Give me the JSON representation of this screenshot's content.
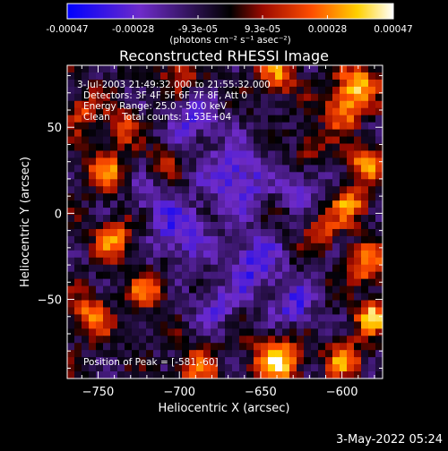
{
  "colorbar": {
    "tick_labels": [
      "-0.00047",
      "-0.00028",
      "-9.3e-05",
      "9.3e-05",
      "0.00028",
      "0.00047"
    ],
    "tick_values": [
      -0.00047,
      -0.00028,
      -9.3e-05,
      9.3e-05,
      0.00028,
      0.00047
    ],
    "unit_label": "(photons cm⁻² s⁻¹ asec⁻²)",
    "range": [
      -0.00047,
      0.00047
    ],
    "colors": [
      "#0000ff",
      "#6e2bc9",
      "#000000",
      "#9b0a00",
      "#ff4e00",
      "#ffd000",
      "#ffffff"
    ]
  },
  "title": "Reconstructed RHESSI Image",
  "info": {
    "time": "3-Jul-2003 21:49:32.000 to 21:55:32.000",
    "detectors": "Detectors: 3F 4F 5F 6F 7F 8F, Att 0",
    "energy": "Energy Range: 25.0 - 50.0 keV",
    "clean": "Clean    Total counts: 1.53E+04",
    "peak": "Position of Peak = [-581,-60]"
  },
  "footer_date": "3-May-2022 05:24",
  "chart_data": {
    "type": "heatmap",
    "title": "Reconstructed RHESSI Image",
    "xlabel": "Heliocentric X (arcsec)",
    "ylabel": "Heliocentric Y (arcsec)",
    "xlim": [
      -769,
      -575
    ],
    "ylim": [
      -96,
      86
    ],
    "x_ticks": [
      -750,
      -700,
      -650,
      -600
    ],
    "y_ticks": [
      -50,
      0,
      50
    ],
    "x_tick_labels": [
      "−750",
      "−700",
      "−650",
      "−600"
    ],
    "y_tick_labels": [
      "−50",
      "0",
      "50"
    ],
    "grid": false,
    "colorbar_position": "top",
    "peak": {
      "x": -581,
      "y": -60
    },
    "value_range": [
      -0.00047,
      0.00047
    ],
    "features": [
      {
        "x": -640,
        "y": -85,
        "v": 1.0,
        "s": 10
      },
      {
        "x": -690,
        "y": -90,
        "v": 0.65,
        "s": 9
      },
      {
        "x": -720,
        "y": -45,
        "v": 0.75,
        "s": 7
      },
      {
        "x": -755,
        "y": -60,
        "v": 0.7,
        "s": 9
      },
      {
        "x": -740,
        "y": -15,
        "v": 0.75,
        "s": 8
      },
      {
        "x": -745,
        "y": 25,
        "v": 0.7,
        "s": 8
      },
      {
        "x": -735,
        "y": 50,
        "v": 0.65,
        "s": 7
      },
      {
        "x": -760,
        "y": 60,
        "v": 0.55,
        "s": 8
      },
      {
        "x": -590,
        "y": 75,
        "v": 0.8,
        "s": 9
      },
      {
        "x": -600,
        "y": 60,
        "v": 0.75,
        "s": 8
      },
      {
        "x": -585,
        "y": 30,
        "v": 0.7,
        "s": 8
      },
      {
        "x": -595,
        "y": 5,
        "v": 0.75,
        "s": 8
      },
      {
        "x": -585,
        "y": -30,
        "v": 0.75,
        "s": 8
      },
      {
        "x": -581,
        "y": -60,
        "v": 1.0,
        "s": 7
      },
      {
        "x": -598,
        "y": -85,
        "v": 0.75,
        "s": 8
      },
      {
        "x": -612,
        "y": -10,
        "v": 0.6,
        "s": 7
      },
      {
        "x": -640,
        "y": 80,
        "v": 0.7,
        "s": 8
      },
      {
        "x": -700,
        "y": 82,
        "v": 0.55,
        "s": 8
      },
      {
        "x": -710,
        "y": 30,
        "v": 0.4,
        "s": 6
      },
      {
        "x": -620,
        "y": 40,
        "v": 0.45,
        "s": 6
      },
      {
        "x": -700,
        "y": -10,
        "v": -0.55,
        "s": 12
      },
      {
        "x": -665,
        "y": 20,
        "v": -0.65,
        "s": 13
      },
      {
        "x": -655,
        "y": -30,
        "v": -0.6,
        "s": 12
      },
      {
        "x": -690,
        "y": 55,
        "v": -0.5,
        "s": 10
      },
      {
        "x": -630,
        "y": -55,
        "v": -0.5,
        "s": 10
      },
      {
        "x": -680,
        "y": -55,
        "v": -0.45,
        "s": 9
      },
      {
        "x": -720,
        "y": 10,
        "v": -0.35,
        "s": 8
      },
      {
        "x": -625,
        "y": 15,
        "v": -0.4,
        "s": 9
      }
    ]
  }
}
